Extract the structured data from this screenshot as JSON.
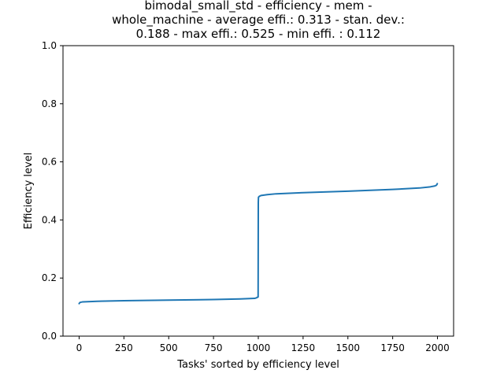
{
  "chart_data": {
    "type": "line",
    "title_lines": [
      "bimodal_small_std - efficiency - mem -",
      "whole_machine - average effi.: 0.313 - stan. dev.:",
      "0.188 - max effi.: 0.525 - min effi. : 0.112"
    ],
    "xlabel": "Tasks' sorted by efficiency level",
    "ylabel": "Efficiency level",
    "xlim": [
      -90,
      2090
    ],
    "ylim": [
      0.0,
      1.0
    ],
    "xticks": [
      0,
      250,
      500,
      750,
      1000,
      1250,
      1500,
      1750,
      2000
    ],
    "xtick_labels": [
      "0",
      "250",
      "500",
      "750",
      "1000",
      "1250",
      "1500",
      "1750",
      "2000"
    ],
    "yticks": [
      0.0,
      0.2,
      0.4,
      0.6,
      0.8,
      1.0
    ],
    "ytick_labels": [
      "0.0",
      "0.2",
      "0.4",
      "0.6",
      "0.8",
      "1.0"
    ],
    "grid": false,
    "line_color": "#1f77b4",
    "series": [
      {
        "x": [
          0,
          5,
          20,
          100,
          250,
          500,
          750,
          900,
          980,
          990,
          999,
          1000,
          1001,
          1005,
          1015,
          1050,
          1100,
          1250,
          1500,
          1750,
          1900,
          1960,
          1985,
          1993,
          1997,
          1999
        ],
        "y": [
          0.112,
          0.116,
          0.118,
          0.12,
          0.122,
          0.124,
          0.126,
          0.128,
          0.13,
          0.132,
          0.135,
          0.46,
          0.478,
          0.481,
          0.484,
          0.487,
          0.49,
          0.494,
          0.499,
          0.505,
          0.51,
          0.514,
          0.517,
          0.519,
          0.522,
          0.525
        ]
      }
    ]
  }
}
